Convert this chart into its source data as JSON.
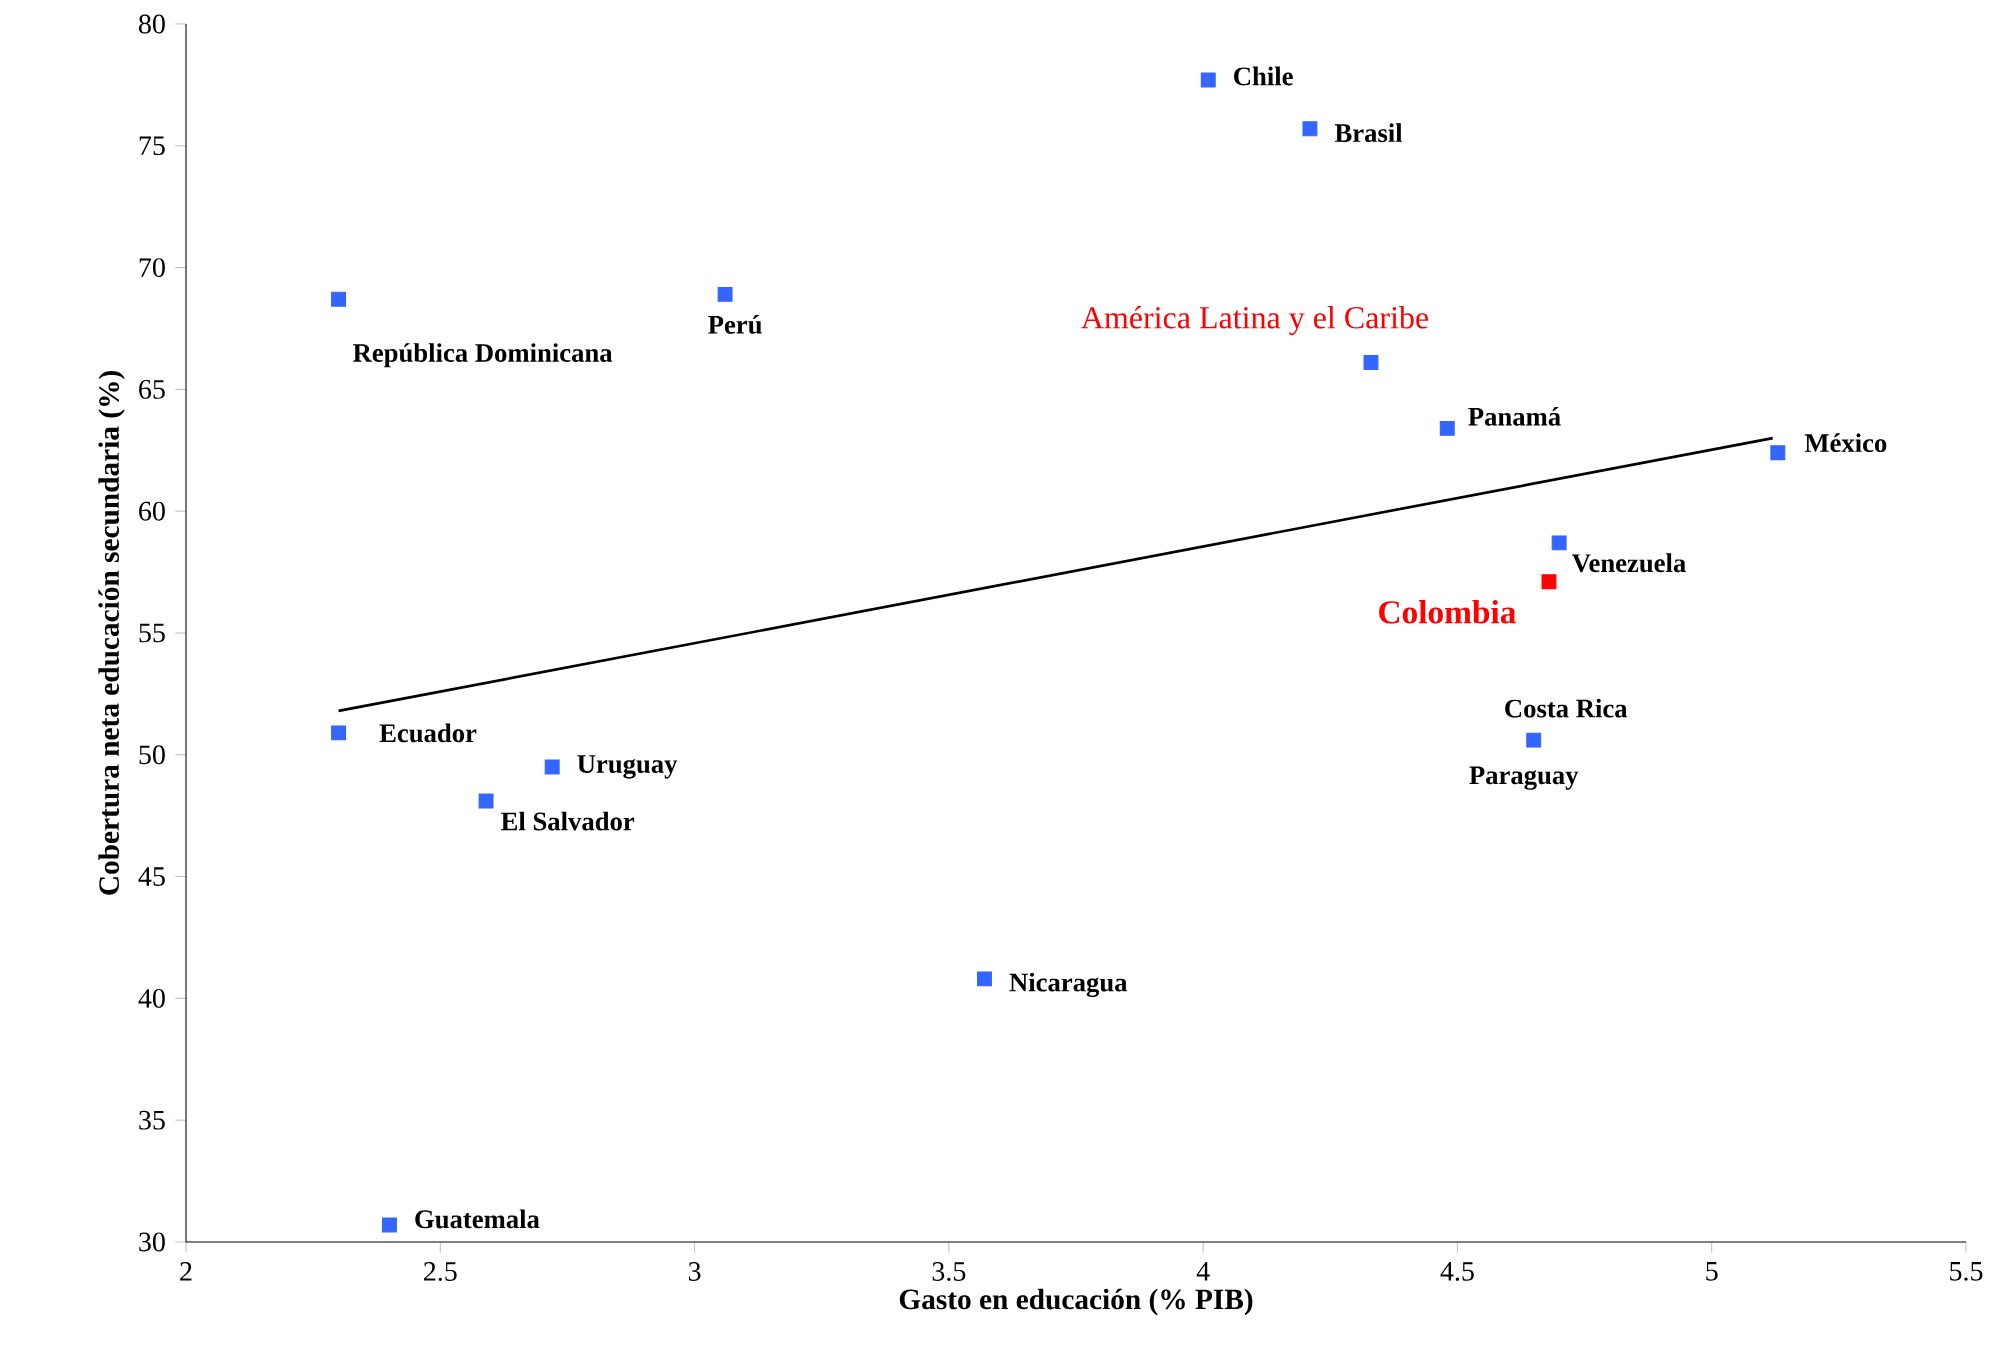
{
  "chart_data": {
    "type": "scatter",
    "xlabel": "Gasto en educación (% PIB)",
    "ylabel": "Cobertura neta educación secundaria (%)",
    "xlim": [
      2,
      5.5
    ],
    "ylim": [
      30,
      80
    ],
    "xticks": [
      2,
      2.5,
      3,
      3.5,
      4,
      4.5,
      5,
      5.5
    ],
    "yticks": [
      30,
      35,
      40,
      45,
      50,
      55,
      60,
      65,
      70,
      75,
      80
    ],
    "marker": "square",
    "grid": false,
    "series": [
      {
        "color": "#3366ff",
        "x": [
          4.01,
          4.21,
          2.3,
          3.06,
          4.33,
          4.48,
          5.13,
          4.7,
          2.3,
          2.72,
          2.59,
          4.65,
          3.57,
          2.4
        ],
        "values": [
          77.7,
          75.7,
          68.7,
          68.9,
          66.1,
          63.4,
          62.4,
          58.7,
          50.9,
          49.5,
          48.1,
          50.6,
          40.8,
          30.7
        ]
      },
      {
        "color": "#ff0000",
        "x": [
          4.68
        ],
        "values": [
          57.1
        ]
      },
      {
        "type": "line",
        "marker": "none",
        "color": "#000000",
        "x": [
          2.3,
          5.12
        ],
        "values": [
          51.8,
          63.0
        ]
      }
    ],
    "annotations": [
      {
        "text": "Chile",
        "x": 4.01,
        "y": 77.7
      },
      {
        "text": "Brasil",
        "x": 4.21,
        "y": 75.7
      },
      {
        "text": "República Dominicana",
        "x": 2.3,
        "y": 68.7
      },
      {
        "text": "Perú",
        "x": 3.06,
        "y": 68.9
      },
      {
        "text": "América Latina y el  Caribe",
        "x": 4.33,
        "y": 66.1
      },
      {
        "text": "Panamá",
        "x": 4.48,
        "y": 63.4
      },
      {
        "text": "México",
        "x": 5.13,
        "y": 62.4
      },
      {
        "text": "Venezuela",
        "x": 4.7,
        "y": 58.7
      },
      {
        "text": "Colombia",
        "x": 4.68,
        "y": 57.1
      },
      {
        "text": "Ecuador",
        "x": 2.3,
        "y": 50.9
      },
      {
        "text": "Uruguay",
        "x": 2.72,
        "y": 49.5
      },
      {
        "text": "El Salvador",
        "x": 2.59,
        "y": 48.1
      },
      {
        "text": "Costa Rica",
        "x": 4.65,
        "y": 50.6
      },
      {
        "text": "Paraguay",
        "x": 4.65,
        "y": 50.6
      },
      {
        "text": "Nicaragua",
        "x": 3.57,
        "y": 40.8
      },
      {
        "text": "Guatemala",
        "x": 2.4,
        "y": 30.7
      }
    ]
  }
}
